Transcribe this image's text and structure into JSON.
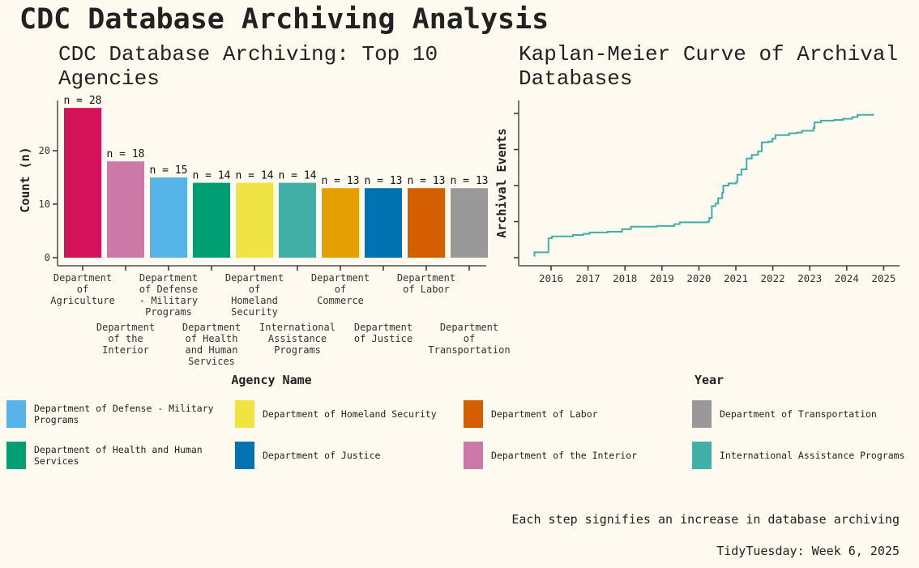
{
  "title": "CDC Database Archiving Analysis",
  "caption": "Each step signifies an increase in database archiving",
  "source": "TidyTuesday: Week 6, 2025",
  "chart_data": [
    {
      "type": "bar",
      "title": "CDC Database Archiving: Top 10 Agencies",
      "xlabel": "Agency Name",
      "ylabel": "Count (n)",
      "ylim": [
        0,
        28
      ],
      "yticks": [
        0,
        10,
        20
      ],
      "categories": [
        {
          "name": "Department of Agriculture",
          "lines": [
            "Department",
            "of",
            "Agriculture"
          ],
          "value": 28,
          "label": "n = 28",
          "color": "#D41159"
        },
        {
          "name": "Department of the Interior",
          "lines": [
            "Department",
            "of the",
            "Interior"
          ],
          "value": 18,
          "label": "n = 18",
          "color": "#CC79A7"
        },
        {
          "name": "Department of Defense - Military Programs",
          "lines": [
            "Department",
            "of Defense",
            "- Military",
            "Programs"
          ],
          "value": 15,
          "label": "n = 15",
          "color": "#56B4E9"
        },
        {
          "name": "Department of Health and Human Services",
          "lines": [
            "Department",
            "of Health",
            "and Human",
            "Services"
          ],
          "value": 14,
          "label": "n = 14",
          "color": "#009E73"
        },
        {
          "name": "Department of Homeland Security",
          "lines": [
            "Department",
            "of",
            "Homeland",
            "Security"
          ],
          "value": 14,
          "label": "n = 14",
          "color": "#F0E442"
        },
        {
          "name": "International Assistance Programs",
          "lines": [
            "International",
            "Assistance",
            "Programs"
          ],
          "value": 14,
          "label": "n = 14",
          "color": "#41AFA6"
        },
        {
          "name": "Department of Commerce",
          "lines": [
            "Department",
            "of",
            "Commerce"
          ],
          "value": 13,
          "label": "n = 13",
          "color": "#E69F00"
        },
        {
          "name": "Department of Justice",
          "lines": [
            "Department",
            "of Justice"
          ],
          "value": 13,
          "label": "n = 13",
          "color": "#0072B2"
        },
        {
          "name": "Department of Labor",
          "lines": [
            "Department",
            "of Labor"
          ],
          "value": 13,
          "label": "n = 13",
          "color": "#D55E00"
        },
        {
          "name": "Department of Transportation",
          "lines": [
            "Department",
            "of",
            "Transportation"
          ],
          "value": 13,
          "label": "n = 13",
          "color": "#999999"
        }
      ],
      "legend": {
        "placement": "bottom",
        "items": [
          {
            "label": "Department of Defense - Military Programs",
            "color": "#56B4E9"
          },
          {
            "label": "Department of Health and Human Services",
            "color": "#009E73"
          },
          {
            "label": "Department of Homeland Security",
            "color": "#F0E442"
          },
          {
            "label": "Department of Justice",
            "color": "#0072B2"
          },
          {
            "label": "Department of Labor",
            "color": "#D55E00"
          },
          {
            "label": "Department of the Interior",
            "color": "#CC79A7"
          },
          {
            "label": "Department of Transportation",
            "color": "#999999"
          },
          {
            "label": "International Assistance Programs",
            "color": "#41AFA6"
          }
        ]
      }
    },
    {
      "type": "line",
      "step": true,
      "title": "Kaplan-Meier Curve of Archival Databases",
      "xlabel": "Year",
      "ylabel": "Archival Events",
      "xlim": [
        2015.3,
        2025.1
      ],
      "ylim": [
        -0.15,
        4.2
      ],
      "xticks": [
        2016,
        2017,
        2018,
        2019,
        2020,
        2021,
        2022,
        2023,
        2024,
        2025
      ],
      "yticks_unlabeled": [
        0,
        1,
        2,
        3,
        4
      ],
      "color": "#41AFA6",
      "x": [
        2015.55,
        2015.55,
        2015.93,
        2016.02,
        2016.59,
        2016.87,
        2017.04,
        2017.53,
        2017.92,
        2018.16,
        2018.86,
        2019.33,
        2019.48,
        2020.24,
        2020.28,
        2020.35,
        2020.45,
        2020.52,
        2020.63,
        2020.66,
        2020.8,
        2021.01,
        2021.04,
        2021.15,
        2021.29,
        2021.43,
        2021.6,
        2021.7,
        2021.88,
        2021.99,
        2022.07,
        2022.44,
        2022.65,
        2022.79,
        2023.1,
        2023.13,
        2023.3,
        2023.66,
        2023.9,
        2024.15,
        2024.29,
        2024.71
      ],
      "y": [
        0.03,
        0.15,
        0.54,
        0.59,
        0.63,
        0.66,
        0.7,
        0.72,
        0.79,
        0.86,
        0.88,
        0.93,
        0.98,
        1.0,
        1.1,
        1.43,
        1.5,
        1.65,
        1.8,
        2.0,
        2.06,
        2.1,
        2.3,
        2.45,
        2.75,
        2.85,
        2.95,
        3.2,
        3.22,
        3.3,
        3.4,
        3.45,
        3.47,
        3.52,
        3.6,
        3.75,
        3.8,
        3.82,
        3.85,
        3.9,
        3.96,
        3.99
      ]
    }
  ]
}
